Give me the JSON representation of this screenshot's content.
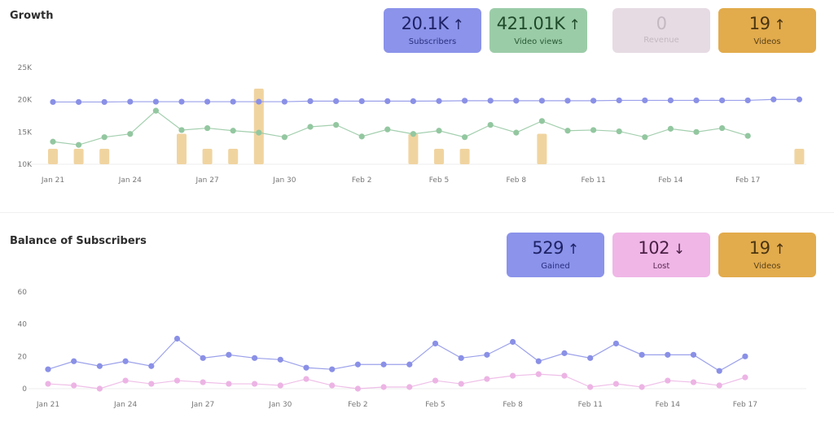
{
  "growth": {
    "title": "Growth",
    "stats": [
      {
        "value": "20.1K",
        "arrow": "↑",
        "label": "Subscribers",
        "bg": "#8b93ea",
        "fg": "#1e2266",
        "lfg": "#2a3080"
      },
      {
        "value": "421.01K",
        "arrow": "↑",
        "label": "Video views",
        "bg": "#9bcca8",
        "fg": "#1f4a2a",
        "lfg": "#2a5a36"
      },
      {
        "value": "0",
        "arrow": "",
        "label": "Revenue",
        "bg": "#e6dbe3",
        "fg": "#c4b8c1",
        "lfg": "#c4b8c1"
      },
      {
        "value": "19",
        "arrow": "↑",
        "label": "Videos",
        "bg": "#e2ab4c",
        "fg": "#4a3510",
        "lfg": "#5a4218"
      }
    ]
  },
  "balance": {
    "title": "Balance of Subscribers",
    "stats": [
      {
        "value": "529",
        "arrow": "↑",
        "label": "Gained",
        "bg": "#8b93ea",
        "fg": "#1e2266",
        "lfg": "#2a3080"
      },
      {
        "value": "102",
        "arrow": "↓",
        "label": "Lost",
        "bg": "#efb6e6",
        "fg": "#4a1e44",
        "lfg": "#5a2a52"
      },
      {
        "value": "19",
        "arrow": "↑",
        "label": "Videos",
        "bg": "#e2ab4c",
        "fg": "#4a3510",
        "lfg": "#5a4218"
      }
    ]
  },
  "chart_data": [
    {
      "type": "line",
      "title": "Growth",
      "x": [
        "Jan 21",
        "Jan 22",
        "Jan 23",
        "Jan 24",
        "Jan 25",
        "Jan 26",
        "Jan 27",
        "Jan 28",
        "Jan 29",
        "Jan 30",
        "Jan 31",
        "Feb 1",
        "Feb 2",
        "Feb 3",
        "Feb 4",
        "Feb 5",
        "Feb 6",
        "Feb 7",
        "Feb 8",
        "Feb 9",
        "Feb 10",
        "Feb 11",
        "Feb 12",
        "Feb 13",
        "Feb 14",
        "Feb 15",
        "Feb 16",
        "Feb 17",
        "Feb 18",
        "Feb 19"
      ],
      "x_tick_labels": [
        "Jan 21",
        "Jan 24",
        "Jan 27",
        "Jan 30",
        "Feb 2",
        "Feb 5",
        "Feb 8",
        "Feb 11",
        "Feb 14",
        "Feb 17"
      ],
      "y_ticks": [
        "10K",
        "15K",
        "20K",
        "25K"
      ],
      "ylim": [
        10000,
        25000
      ],
      "grid": false,
      "series": [
        {
          "name": "Subscribers",
          "color": "#8a90e6",
          "kind": "line",
          "values": [
            19650,
            19650,
            19650,
            19700,
            19700,
            19700,
            19700,
            19700,
            19700,
            19700,
            19780,
            19780,
            19780,
            19780,
            19780,
            19800,
            19850,
            19850,
            19850,
            19850,
            19850,
            19850,
            19900,
            19900,
            19900,
            19900,
            19900,
            19900,
            20050,
            20050
          ]
        },
        {
          "name": "Video views",
          "color": "#93c7a0",
          "kind": "line",
          "values": [
            13500,
            13000,
            14200,
            14700,
            18300,
            15300,
            15600,
            15200,
            14900,
            14200,
            15800,
            16100,
            14300,
            15400,
            14700,
            15200,
            14200,
            16100,
            14900,
            16700,
            15200,
            15300,
            15100,
            14200,
            15500,
            15000,
            15600,
            14400,
            null,
            null
          ]
        },
        {
          "name": "Videos",
          "color": "#f0d4a0",
          "kind": "bar",
          "values": [
            1,
            1,
            1,
            0,
            0,
            2,
            1,
            1,
            5,
            0,
            0,
            0,
            0,
            0,
            2,
            1,
            1,
            0,
            0,
            2,
            0,
            0,
            0,
            0,
            0,
            0,
            0,
            0,
            0,
            1
          ]
        }
      ]
    },
    {
      "type": "line",
      "title": "Balance of Subscribers",
      "x": [
        "Jan 21",
        "Jan 22",
        "Jan 23",
        "Jan 24",
        "Jan 25",
        "Jan 26",
        "Jan 27",
        "Jan 28",
        "Jan 29",
        "Jan 30",
        "Jan 31",
        "Feb 1",
        "Feb 2",
        "Feb 3",
        "Feb 4",
        "Feb 5",
        "Feb 6",
        "Feb 7",
        "Feb 8",
        "Feb 9",
        "Feb 10",
        "Feb 11",
        "Feb 12",
        "Feb 13",
        "Feb 14",
        "Feb 15",
        "Feb 16",
        "Feb 17"
      ],
      "x_tick_labels": [
        "Jan 21",
        "Jan 24",
        "Jan 27",
        "Jan 30",
        "Feb 2",
        "Feb 5",
        "Feb 8",
        "Feb 11",
        "Feb 14",
        "Feb 17"
      ],
      "y_ticks": [
        "0",
        "20",
        "40",
        "60"
      ],
      "ylim": [
        0,
        60
      ],
      "grid": false,
      "series": [
        {
          "name": "Gained",
          "color": "#8a90e6",
          "values": [
            12,
            17,
            14,
            17,
            14,
            31,
            19,
            21,
            19,
            18,
            13,
            12,
            15,
            15,
            15,
            28,
            19,
            21,
            29,
            17,
            22,
            19,
            28,
            21,
            21,
            21,
            11,
            20
          ]
        },
        {
          "name": "Lost",
          "color": "#ecb4e4",
          "values": [
            3,
            2,
            0,
            5,
            3,
            5,
            4,
            3,
            3,
            2,
            6,
            2,
            0,
            1,
            1,
            5,
            3,
            6,
            8,
            9,
            8,
            1,
            3,
            1,
            5,
            4,
            2,
            7
          ]
        }
      ]
    }
  ]
}
